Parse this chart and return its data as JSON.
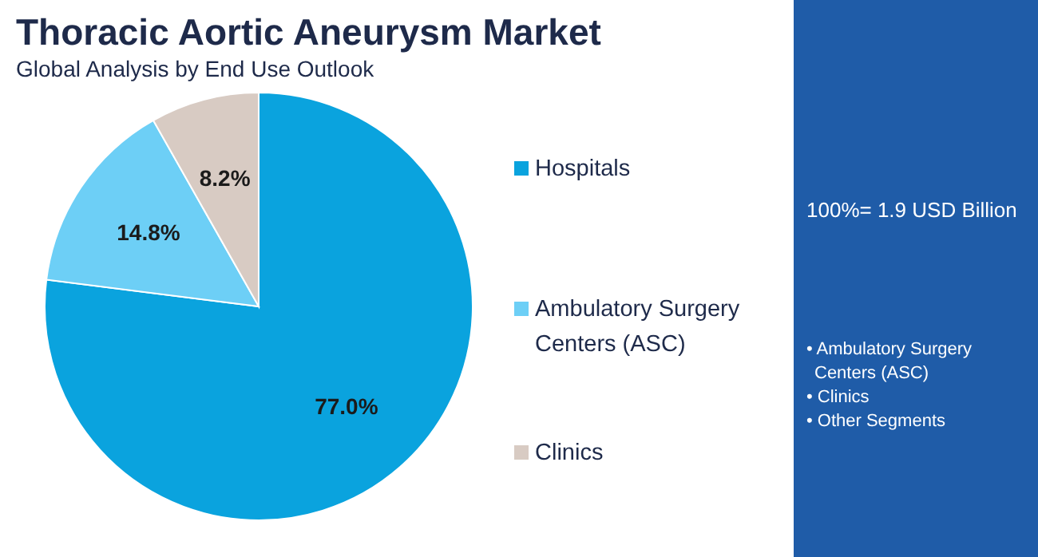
{
  "chart_data": {
    "type": "pie",
    "title": "Thoracic Aortic Aneurysm Market",
    "subtitle": "Global Analysis by End Use Outlook",
    "categories": [
      "Hospitals",
      "Ambulatory Surgery Centers (ASC)",
      "Clinics"
    ],
    "values": [
      77.0,
      14.8,
      8.2
    ],
    "colors": [
      "#0aa3de",
      "#6dcff6",
      "#d8cbc3"
    ],
    "value_labels": [
      "77.0%",
      "14.8%",
      "8.2%"
    ],
    "legend": "right",
    "annotations": [
      "100%= 1.9 USD Billion",
      "• Ambulatory Surgery Centers (ASC)",
      "• Clinics",
      "• Other Segments"
    ]
  }
}
